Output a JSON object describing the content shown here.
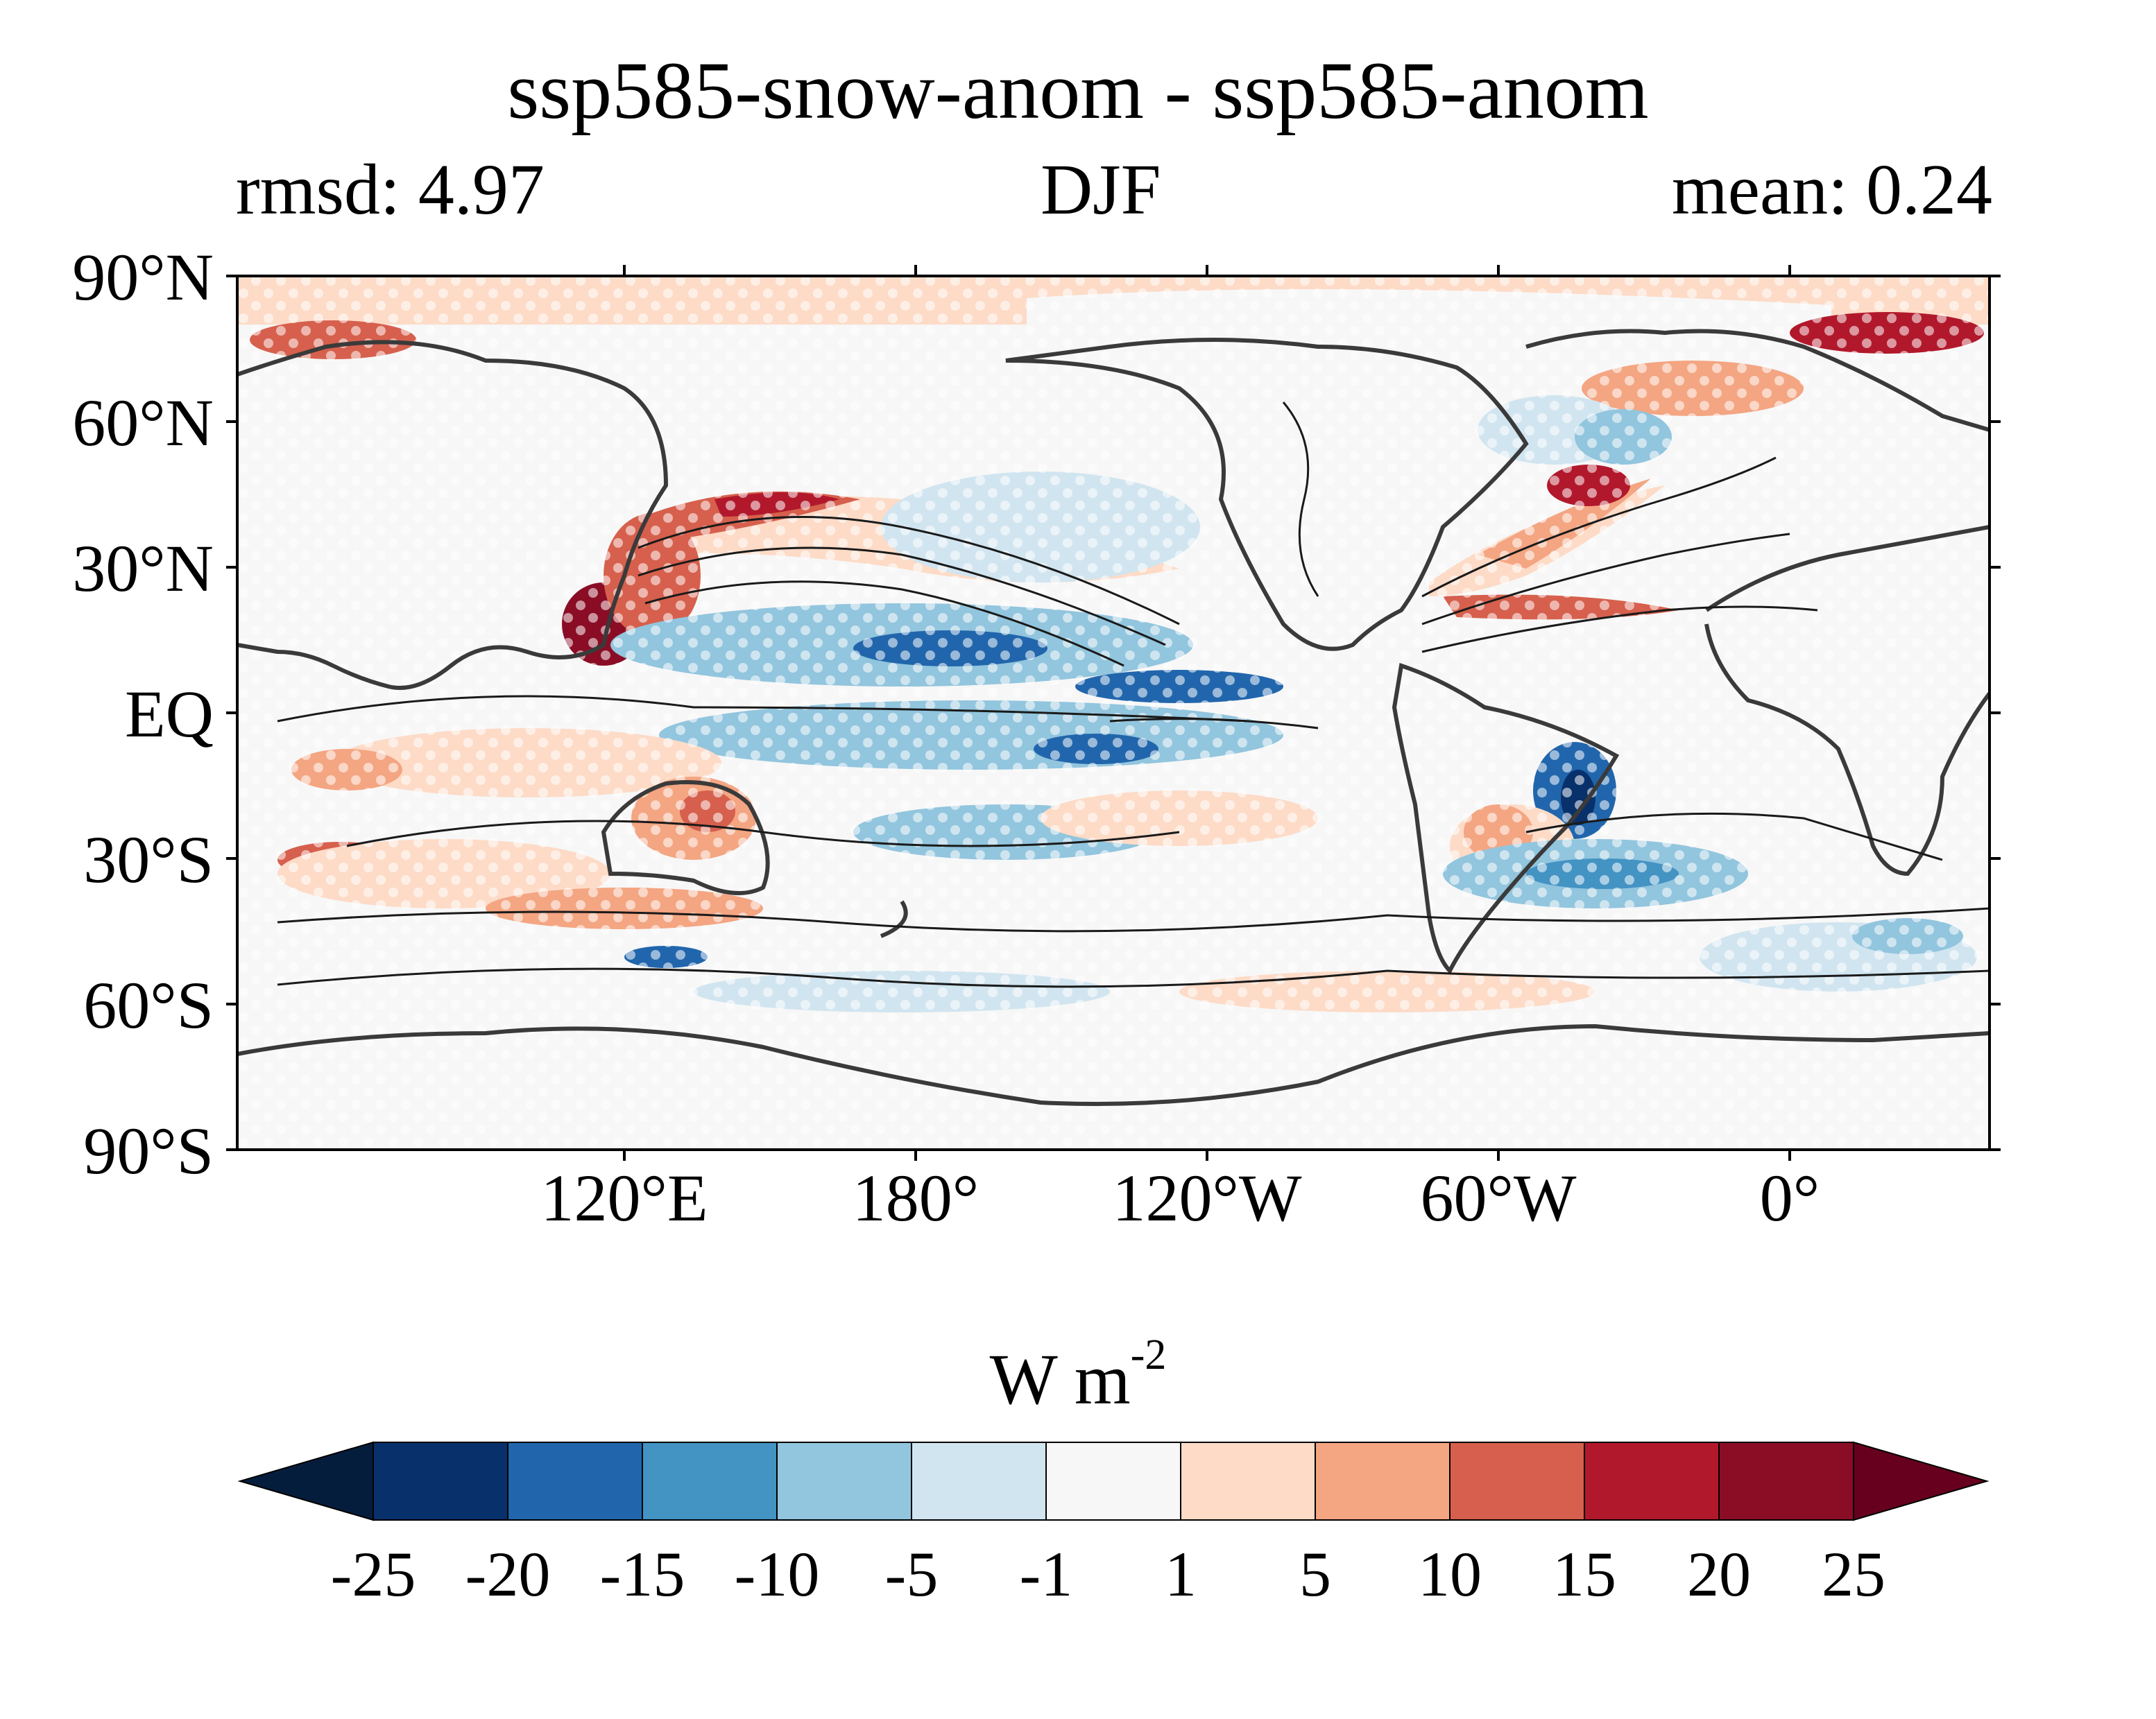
{
  "title": "ssp585-snow-anom - ssp585-anom",
  "subtitle": {
    "left": "rmsd: 4.97",
    "center": "DJF",
    "right": "mean: 0.24"
  },
  "map": {
    "projection": "equirectangular",
    "central_longitude": "-150",
    "lat_ticks": [
      "90°N",
      "60°N",
      "30°N",
      "EQ",
      "30°S",
      "60°S",
      "90°S"
    ],
    "lon_ticks": [
      "120°E",
      "180°",
      "120°W",
      "60°W",
      "0°"
    ],
    "stippling": "white dots",
    "contours": "black lines"
  },
  "colorbar": {
    "units": "W m",
    "units_exp": "-2",
    "ticks": [
      "-25",
      "-20",
      "-15",
      "-10",
      "-5",
      "-1",
      "1",
      "5",
      "10",
      "15",
      "20",
      "25"
    ],
    "colors": [
      "#08306b",
      "#2166ac",
      "#4393c3",
      "#92c5de",
      "#d1e5f0",
      "#f7f7f7",
      "#fddbc7",
      "#f4a582",
      "#d6604d",
      "#b2182b",
      "#8a0d25"
    ],
    "extend_low_color": "#051d3d",
    "extend_high_color": "#67001f"
  }
}
